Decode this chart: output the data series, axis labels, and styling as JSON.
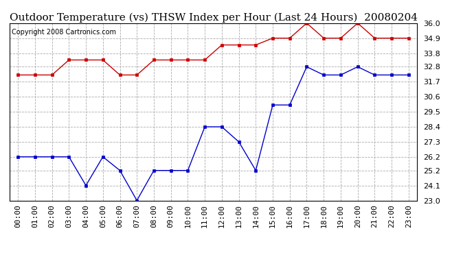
{
  "title": "Outdoor Temperature (vs) THSW Index per Hour (Last 24 Hours)  20080204",
  "copyright": "Copyright 2008 Cartronics.com",
  "x_labels": [
    "00:00",
    "01:00",
    "02:00",
    "03:00",
    "04:00",
    "05:00",
    "06:00",
    "07:00",
    "08:00",
    "09:00",
    "10:00",
    "11:00",
    "12:00",
    "13:00",
    "14:00",
    "15:00",
    "16:00",
    "17:00",
    "18:00",
    "19:00",
    "20:00",
    "21:00",
    "22:00",
    "23:00"
  ],
  "temp_blue": [
    26.2,
    26.2,
    26.2,
    26.2,
    24.1,
    26.2,
    25.2,
    23.0,
    25.2,
    25.2,
    25.2,
    28.4,
    28.4,
    27.3,
    25.2,
    30.0,
    30.0,
    32.8,
    32.2,
    32.2,
    32.8,
    32.2,
    32.2,
    32.2
  ],
  "thsw_red": [
    32.2,
    32.2,
    32.2,
    33.3,
    33.3,
    33.3,
    32.2,
    32.2,
    33.3,
    33.3,
    33.3,
    33.3,
    34.4,
    34.4,
    34.4,
    34.9,
    34.9,
    36.0,
    34.9,
    34.9,
    36.0,
    34.9,
    34.9,
    34.9
  ],
  "ylim_min": 23.0,
  "ylim_max": 36.0,
  "y_ticks": [
    23.0,
    24.1,
    25.2,
    26.2,
    27.3,
    28.4,
    29.5,
    30.6,
    31.7,
    32.8,
    33.8,
    34.9,
    36.0
  ],
  "bg_color": "#ffffff",
  "plot_bg_color": "#ffffff",
  "grid_color": "#aaaaaa",
  "blue_color": "#0000cc",
  "red_color": "#cc0000",
  "title_fontsize": 11,
  "tick_fontsize": 8,
  "copyright_fontsize": 7
}
